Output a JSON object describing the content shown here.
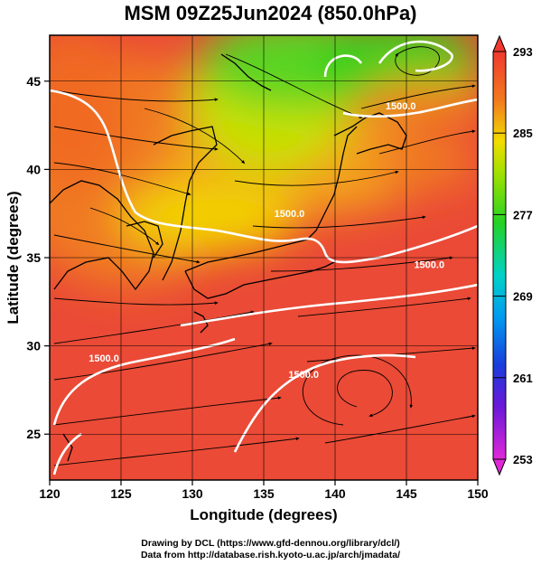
{
  "title": "MSM 09Z25Jun2024 (850.0hPa)",
  "map": {
    "type": "contour-map",
    "xlabel": "Longitude (degrees)",
    "ylabel": "Latitude  (degrees)",
    "xlim": [
      120,
      150
    ],
    "ylim": [
      22.4,
      47.6
    ],
    "x_ticks": [
      120,
      125,
      130,
      135,
      140,
      145,
      150
    ],
    "y_ticks": [
      25,
      30,
      35,
      40,
      45
    ],
    "contour_labels": [
      {
        "text": "1500.0",
        "lon": 144.6,
        "lat": 43.4
      },
      {
        "text": "1500.0",
        "lon": 136.8,
        "lat": 37.3
      },
      {
        "text": "1500.0",
        "lon": 146.6,
        "lat": 34.4
      },
      {
        "text": "1500.0",
        "lon": 123.8,
        "lat": 29.1
      },
      {
        "text": "1500.0",
        "lon": 137.8,
        "lat": 28.2
      }
    ],
    "colors": {
      "green": "#35d21f",
      "yellow": "#f2e400",
      "orange": "#f08a1c",
      "red": "#e8443a",
      "contour": "#ffffff",
      "coast": "#000000"
    }
  },
  "colorbar": {
    "labels": [
      "293",
      "285",
      "277",
      "269",
      "261",
      "253"
    ],
    "min": 253,
    "max": 293
  },
  "credits": {
    "line1": "Drawing by DCL (https://www.gfd-dennou.org/library/dcl/)",
    "line2": "Data from http://database.rish.kyoto-u.ac.jp/arch/jmadata/"
  }
}
